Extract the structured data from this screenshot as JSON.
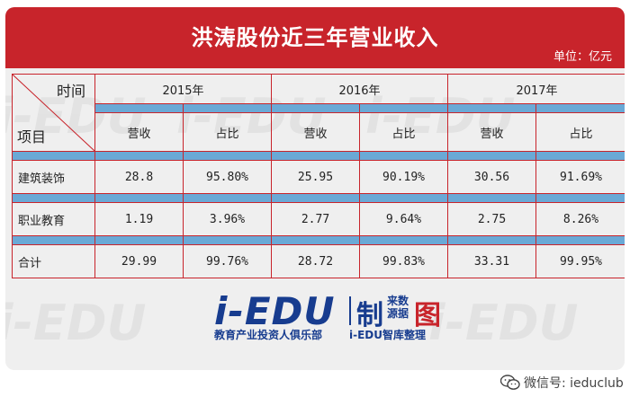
{
  "title": "洪涛股份近三年营业收入",
  "unit": "单位：亿元",
  "header": {
    "time": "时间",
    "item": "项目"
  },
  "years": [
    "2015年",
    "2016年",
    "2017年"
  ],
  "sub_headers": [
    "营收",
    "占比"
  ],
  "rows": [
    {
      "label": "建筑装饰",
      "values": [
        "28.8",
        "95.80%",
        "25.95",
        "90.19%",
        "30.56",
        "91.69%"
      ]
    },
    {
      "label": "职业教育",
      "values": [
        "1.19",
        "3.96%",
        "2.77",
        "9.64%",
        "2.75",
        "8.26%"
      ]
    },
    {
      "label": "合计",
      "values": [
        "29.99",
        "99.76%",
        "28.72",
        "99.83%",
        "33.31",
        "99.95%"
      ]
    }
  ],
  "logo": {
    "main": "i-EDU",
    "zhi": "制",
    "source": "来数\n源据",
    "tu": "图",
    "sub1": "教育产业投资人俱乐部",
    "sub2": "i-EDU智库整理"
  },
  "watermark": "i-EDU",
  "wechat": "微信号: ieduclub",
  "colors": {
    "banner": "#c8242b",
    "accent_blue": "#6aa9d6",
    "logo_blue": "#173c8f"
  }
}
